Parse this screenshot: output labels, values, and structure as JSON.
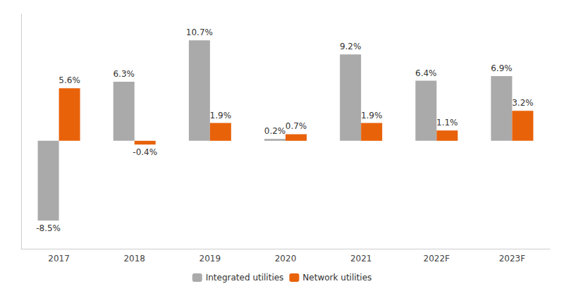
{
  "chart_data": {
    "type": "bar",
    "categories": [
      "2017",
      "2018",
      "2019",
      "2020",
      "2021",
      "2022F",
      "2023F"
    ],
    "series": [
      {
        "name": "Integrated utilities",
        "color": "#AAAAAA",
        "values": [
          -8.5,
          6.3,
          10.7,
          0.2,
          9.2,
          6.4,
          6.9
        ],
        "value_labels": [
          "-8.5%",
          "6.3%",
          "10.7%",
          "0.2%",
          "9.2%",
          "6.4%",
          "6.9%"
        ]
      },
      {
        "name": "Network utilities",
        "color": "#E8620A",
        "values": [
          5.6,
          -0.4,
          1.9,
          0.7,
          1.9,
          1.1,
          3.2
        ],
        "value_labels": [
          "5.6%",
          "-0.4%",
          "1.9%",
          "0.7%",
          "1.9%",
          "1.1%",
          "3.2%"
        ]
      }
    ],
    "ylim": [
      -11.5,
      13.5
    ],
    "grid": false,
    "legend": "bottom",
    "data_labels": true,
    "tick_labels": "x"
  }
}
